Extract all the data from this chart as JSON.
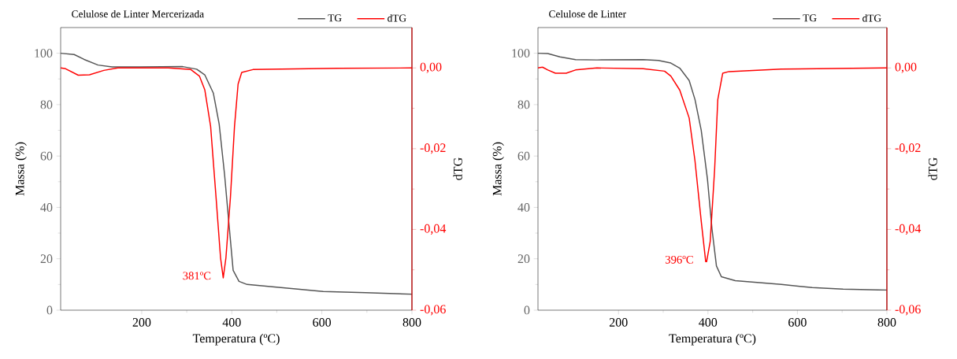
{
  "chart_data": [
    {
      "type": "line",
      "title": "Celulose de Linter Mercerizada",
      "xlabel": "Temperatura (ºC)",
      "ylabel": "Massa (%)",
      "y2label": "dTG",
      "legend": "top right",
      "xlim": [
        20,
        800
      ],
      "ylim": [
        0,
        110
      ],
      "y2lim": [
        -0.06,
        0.01
      ],
      "xticks": [
        200,
        400,
        600,
        800
      ],
      "yticks": [
        0,
        20,
        40,
        60,
        80,
        100
      ],
      "y2ticks": [
        {
          "value": -0.06,
          "label": "-0,06"
        },
        {
          "value": -0.04,
          "label": "-0,04"
        },
        {
          "value": -0.02,
          "label": "-0,02"
        },
        {
          "value": 0,
          "label": "0,00"
        }
      ],
      "annotations": [
        "381ºC"
      ],
      "series": [
        {
          "name": "TG",
          "color": "#555555",
          "x": [
            20,
            50,
            72,
            103,
            134,
            197,
            291,
            322,
            340,
            359,
            372,
            384,
            394,
            403,
            416,
            434,
            509,
            603,
            697,
            800
          ],
          "values": [
            100,
            99.5,
            97.6,
            95.4,
            94.7,
            94.7,
            94.8,
            93.8,
            91.6,
            84.5,
            72.4,
            52.7,
            33,
            15.5,
            11.2,
            10,
            8.8,
            7.3,
            6.8,
            6.2
          ]
        },
        {
          "name": "dTG",
          "color": "#ff0000",
          "axis": "y2",
          "x": [
            20,
            31,
            59,
            84,
            116,
            147,
            259,
            309,
            328,
            340,
            353,
            365,
            375,
            381,
            387,
            397,
            406,
            414,
            422,
            447,
            634,
            800
          ],
          "values": [
            0,
            -0.0002,
            -0.0018,
            -0.0017,
            -0.0006,
            0,
            0,
            -0.0004,
            -0.002,
            -0.0054,
            -0.0145,
            -0.032,
            -0.047,
            -0.052,
            -0.047,
            -0.032,
            -0.0145,
            -0.004,
            -0.0011,
            -0.0004,
            -0.0001,
            0
          ]
        }
      ]
    },
    {
      "type": "line",
      "title": "Celulose de Linter",
      "xlabel": "Temperatura (ºC)",
      "ylabel": "Massa (%)",
      "y2label": "dTG",
      "legend": "top right",
      "xlim": [
        20,
        800
      ],
      "ylim": [
        0,
        110
      ],
      "y2lim": [
        -0.06,
        0.01
      ],
      "xticks": [
        200,
        400,
        600,
        800
      ],
      "yticks": [
        0,
        20,
        40,
        60,
        80,
        100
      ],
      "y2ticks": [
        {
          "value": -0.06,
          "label": "-0,06"
        },
        {
          "value": -0.04,
          "label": "-0,04"
        },
        {
          "value": -0.02,
          "label": "-0,02"
        },
        {
          "value": 0,
          "label": "0,00"
        }
      ],
      "annotations": [
        "396ºC"
      ],
      "series": [
        {
          "name": "TG",
          "color": "#555555",
          "x": [
            20,
            42,
            69,
            104,
            152,
            255,
            289,
            317,
            337,
            358,
            371,
            385,
            399,
            409,
            419,
            430,
            461,
            564,
            633,
            702,
            800
          ],
          "values": [
            100,
            99.9,
            98.6,
            97.5,
            97.4,
            97.5,
            97.2,
            96.2,
            94.2,
            89.4,
            82,
            70,
            50.8,
            31.6,
            17.2,
            13,
            11.5,
            10,
            8.8,
            8.2,
            7.8
          ]
        },
        {
          "name": "dTG",
          "color": "#ff0000",
          "axis": "y2",
          "x": [
            20,
            30,
            42,
            59,
            83,
            104,
            152,
            255,
            303,
            317,
            337,
            358,
            371,
            385,
            395,
            397,
            405,
            415,
            422,
            433,
            447,
            564,
            800
          ],
          "values": [
            0,
            0.0002,
            -0.0005,
            -0.0013,
            -0.0013,
            -0.0005,
            0,
            -0.0002,
            -0.0008,
            -0.002,
            -0.0055,
            -0.0124,
            -0.023,
            -0.038,
            -0.048,
            -0.048,
            -0.043,
            -0.025,
            -0.0078,
            -0.0013,
            -0.0009,
            -0.0003,
            0
          ]
        }
      ]
    }
  ]
}
